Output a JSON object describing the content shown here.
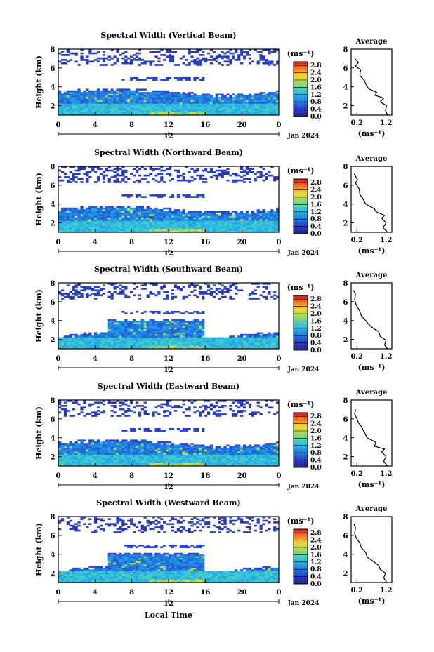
{
  "chart_data": [
    {
      "type": "heatmap",
      "title": "Spectral Width (Vertical Beam)",
      "ylabel": "Height (km)",
      "xticks": [
        "0",
        "4",
        "8",
        "12",
        "16",
        "20",
        "0"
      ],
      "yticks": [
        "2",
        "4",
        "6",
        "8"
      ],
      "xlim": [
        0,
        24
      ],
      "ylim": [
        1,
        8
      ],
      "date_tick": "12",
      "date_label": "Jan 2024",
      "colorbar": {
        "unit": "(ms⁻¹)",
        "ticks": [
          "2.8",
          "2.4",
          "2.0",
          "1.6",
          "1.2",
          "0.8",
          "0.4",
          "0.0"
        ],
        "range": [
          0.0,
          3.0
        ]
      },
      "profile": {
        "title": "Average",
        "xlabel": "(ms⁻¹)",
        "xticks": [
          "0.2",
          "1.2"
        ],
        "yticks": [
          "2",
          "4",
          "6",
          "8"
        ],
        "xlim": [
          0.0,
          1.4
        ],
        "ylim": [
          1,
          8
        ],
        "points": [
          [
            1.25,
            1.0
          ],
          [
            1.18,
            1.5
          ],
          [
            1.22,
            2.0
          ],
          [
            1.0,
            2.4
          ],
          [
            1.12,
            2.8
          ],
          [
            0.82,
            3.1
          ],
          [
            0.88,
            3.4
          ],
          [
            0.6,
            3.8
          ],
          [
            0.52,
            4.2
          ],
          [
            0.45,
            4.7
          ],
          [
            0.3,
            5.2
          ],
          [
            0.32,
            5.8
          ],
          [
            0.15,
            6.2
          ],
          [
            0.25,
            6.6
          ],
          [
            0.12,
            7.0
          ]
        ]
      }
    },
    {
      "type": "heatmap",
      "title": "Spectral Width (Northward Beam)",
      "ylabel": "Height (km)",
      "xticks": [
        "0",
        "4",
        "8",
        "12",
        "16",
        "20",
        "0"
      ],
      "yticks": [
        "2",
        "4",
        "6",
        "8"
      ],
      "xlim": [
        0,
        24
      ],
      "ylim": [
        1,
        8
      ],
      "date_tick": "12",
      "date_label": "Jan 2024",
      "colorbar": {
        "unit": "(ms⁻¹)",
        "ticks": [
          "2.8",
          "2.4",
          "2.0",
          "1.6",
          "1.2",
          "0.8",
          "0.4",
          "0.0"
        ],
        "range": [
          0.0,
          3.0
        ]
      },
      "profile": {
        "title": "Average",
        "xlabel": "(ms⁻¹)",
        "xticks": [
          "0.2",
          "1.2"
        ],
        "yticks": [
          "2",
          "4",
          "6",
          "8"
        ],
        "xlim": [
          0.0,
          1.4
        ],
        "ylim": [
          1,
          8
        ],
        "points": [
          [
            1.25,
            1.0
          ],
          [
            1.1,
            1.5
          ],
          [
            1.2,
            2.0
          ],
          [
            1.05,
            2.5
          ],
          [
            1.15,
            2.8
          ],
          [
            0.85,
            3.2
          ],
          [
            0.8,
            3.5
          ],
          [
            0.5,
            4.0
          ],
          [
            0.4,
            4.6
          ],
          [
            0.3,
            5.0
          ],
          [
            0.28,
            5.6
          ],
          [
            0.15,
            6.2
          ],
          [
            0.22,
            6.6
          ],
          [
            0.1,
            7.2
          ]
        ]
      }
    },
    {
      "type": "heatmap",
      "title": "Spectral Width (Southward Beam)",
      "ylabel": "Height (km)",
      "xticks": [
        "0",
        "4",
        "8",
        "12",
        "16",
        "20",
        "0"
      ],
      "yticks": [
        "2",
        "4",
        "6",
        "8"
      ],
      "xlim": [
        0,
        24
      ],
      "ylim": [
        1,
        8
      ],
      "date_tick": "12",
      "date_label": "Jan 2024",
      "colorbar": {
        "unit": "(ms⁻¹)",
        "ticks": [
          "2.8",
          "2.4",
          "2.0",
          "1.6",
          "1.2",
          "0.8",
          "0.4",
          "0.0"
        ],
        "range": [
          0.0,
          3.0
        ]
      },
      "profile": {
        "title": "Average",
        "xlabel": "(ms⁻¹)",
        "xticks": [
          "0.2",
          "1.2"
        ],
        "yticks": [
          "2",
          "4",
          "6",
          "8"
        ],
        "xlim": [
          0.0,
          1.4
        ],
        "ylim": [
          1,
          8
        ],
        "points": [
          [
            1.25,
            1.0
          ],
          [
            1.15,
            1.4
          ],
          [
            1.2,
            1.9
          ],
          [
            1.0,
            2.3
          ],
          [
            0.95,
            2.8
          ],
          [
            0.75,
            3.2
          ],
          [
            0.6,
            3.6
          ],
          [
            0.5,
            4.0
          ],
          [
            0.35,
            4.5
          ],
          [
            0.3,
            5.0
          ],
          [
            0.18,
            5.6
          ],
          [
            0.12,
            6.2
          ],
          [
            0.15,
            6.8
          ],
          [
            0.08,
            7.2
          ]
        ]
      }
    },
    {
      "type": "heatmap",
      "title": "Spectral Width (Eastward Beam)",
      "ylabel": "Height (km)",
      "xticks": [
        "0",
        "4",
        "8",
        "12",
        "16",
        "20",
        "0"
      ],
      "yticks": [
        "2",
        "4",
        "6",
        "8"
      ],
      "xlim": [
        0,
        24
      ],
      "ylim": [
        1,
        8
      ],
      "date_tick": "12",
      "date_label": "Jan 2024",
      "colorbar": {
        "unit": "(ms⁻¹)",
        "ticks": [
          "2.8",
          "2.4",
          "2.0",
          "1.6",
          "1.2",
          "0.8",
          "0.4",
          "0.0"
        ],
        "range": [
          0.0,
          3.0
        ]
      },
      "profile": {
        "title": "Average",
        "xlabel": "(ms⁻¹)",
        "xticks": [
          "0.2",
          "1.2"
        ],
        "yticks": [
          "2",
          "4",
          "6",
          "8"
        ],
        "xlim": [
          0.0,
          1.4
        ],
        "ylim": [
          1,
          8
        ],
        "points": [
          [
            1.25,
            1.0
          ],
          [
            1.12,
            1.5
          ],
          [
            1.2,
            2.0
          ],
          [
            1.05,
            2.5
          ],
          [
            1.15,
            2.8
          ],
          [
            0.8,
            3.1
          ],
          [
            0.85,
            3.5
          ],
          [
            0.55,
            4.0
          ],
          [
            0.45,
            4.6
          ],
          [
            0.35,
            5.2
          ],
          [
            0.25,
            5.6
          ],
          [
            0.2,
            6.0
          ],
          [
            0.12,
            6.5
          ],
          [
            0.15,
            7.0
          ]
        ]
      }
    },
    {
      "type": "heatmap",
      "title": "Spectral Width (Westward Beam)",
      "ylabel": "Height (km)",
      "xticks": [
        "0",
        "4",
        "8",
        "12",
        "16",
        "20",
        "0"
      ],
      "yticks": [
        "2",
        "4",
        "6",
        "8"
      ],
      "xlim": [
        0,
        24
      ],
      "ylim": [
        1,
        8
      ],
      "date_tick": "12",
      "date_label": "Jan 2024",
      "xlabel": "Local Time",
      "colorbar": {
        "unit": "(ms⁻¹)",
        "ticks": [
          "2.8",
          "2.4",
          "2.0",
          "1.6",
          "1.2",
          "0.8",
          "0.4",
          "0.0"
        ],
        "range": [
          0.0,
          3.0
        ]
      },
      "profile": {
        "title": "Average",
        "xlabel": "(ms⁻¹)",
        "xticks": [
          "0.2",
          "1.2"
        ],
        "yticks": [
          "2",
          "4",
          "6",
          "8"
        ],
        "xlim": [
          0.0,
          1.4
        ],
        "ylim": [
          1,
          8
        ],
        "points": [
          [
            1.22,
            1.0
          ],
          [
            1.12,
            1.5
          ],
          [
            1.18,
            2.0
          ],
          [
            1.0,
            2.4
          ],
          [
            0.95,
            2.8
          ],
          [
            0.78,
            3.2
          ],
          [
            0.55,
            3.7
          ],
          [
            0.5,
            4.2
          ],
          [
            0.35,
            4.7
          ],
          [
            0.3,
            5.2
          ],
          [
            0.18,
            5.7
          ],
          [
            0.12,
            6.2
          ],
          [
            0.15,
            6.8
          ],
          [
            0.1,
            7.2
          ]
        ]
      }
    }
  ]
}
